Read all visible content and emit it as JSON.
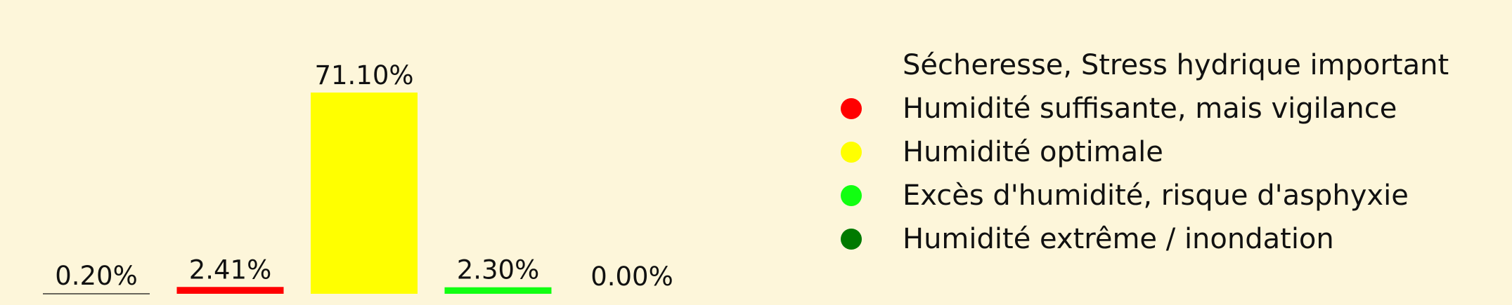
{
  "chart_data": {
    "type": "bar",
    "title": "",
    "xlabel": "",
    "ylabel": "",
    "ylim": [
      0,
      71.1
    ],
    "grid": false,
    "legend_placement": "right",
    "categories": [
      "Sécheresse, Stress hydrique important",
      "Humidité suffisante, mais vigilance",
      "Humidité optimale",
      "Excès d'humidité, risque d'asphyxie",
      "Humidité extrême / inondation"
    ],
    "values": [
      0.2,
      2.41,
      71.1,
      2.3,
      0.0
    ],
    "value_labels": [
      "0.20%",
      "2.41%",
      "71.10%",
      "2.30%",
      "0.00%"
    ],
    "colors": [
      "#fdf6da",
      "#ff0000",
      "#ffff00",
      "#11ff11",
      "#007a00"
    ],
    "legend": [
      "Sécheresse, Stress hydrique important",
      "Humidité suffisante, mais vigilance",
      "Humidité optimale",
      "Excès d'humidité, risque d'asphyxie",
      "Humidité extrême / inondation"
    ]
  }
}
